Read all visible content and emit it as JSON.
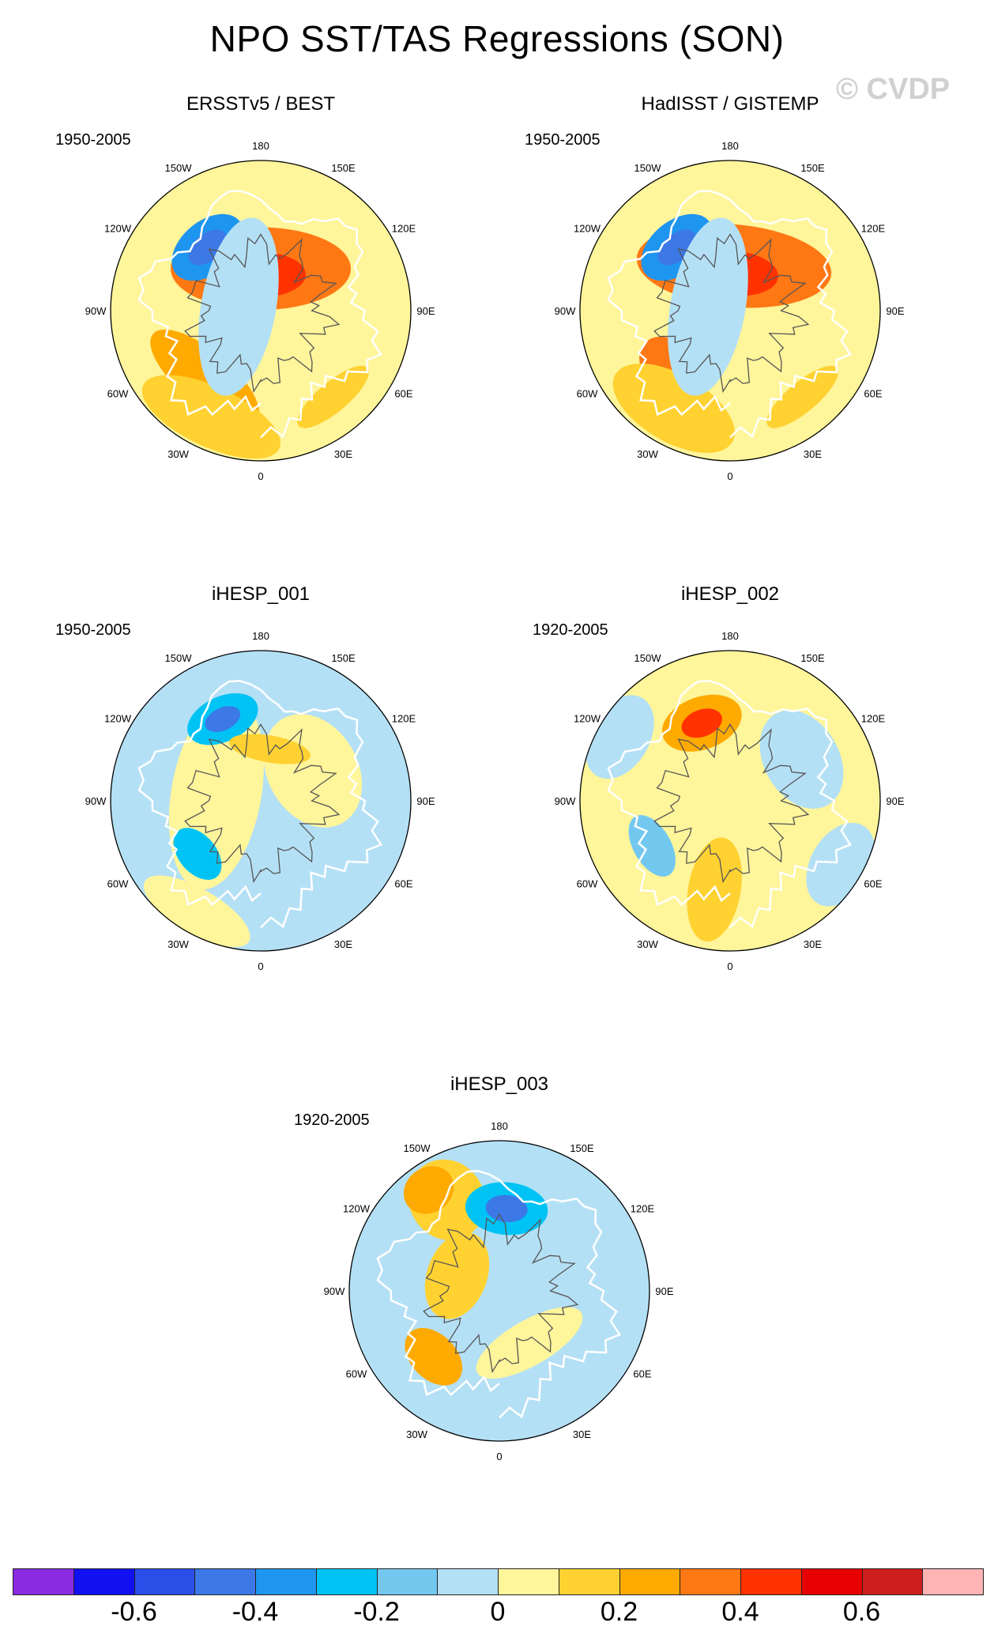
{
  "title": "NPO SST/TAS Regressions (SON)",
  "watermark": "© CVDP",
  "lon_labels": [
    "180",
    "150E",
    "120E",
    "90E",
    "60E",
    "30E",
    "0",
    "30W",
    "60W",
    "90W",
    "120W",
    "150W"
  ],
  "panels": [
    {
      "title": "ERSSTv5 / BEST",
      "years": "1950-2005",
      "blobs": [
        {
          "lon": 180,
          "r": 0.28,
          "level": 0.3,
          "rx": 1.2,
          "ry": 0.55
        },
        {
          "lon": 180,
          "r": 0.24,
          "level": 0.45,
          "rx": 0.6,
          "ry": 0.3
        },
        {
          "lon": -140,
          "r": 0.55,
          "level": -0.35,
          "rx": 0.55,
          "ry": 0.35
        },
        {
          "lon": -140,
          "r": 0.55,
          "level": -0.5,
          "rx": 0.3,
          "ry": 0.18
        },
        {
          "lon": -40,
          "r": 0.58,
          "level": 0.25,
          "rx": 0.9,
          "ry": 0.35
        },
        {
          "lon": -25,
          "r": 0.78,
          "level": 0.15,
          "rx": 1.0,
          "ry": 0.4
        },
        {
          "lon": -100,
          "r": 0.15,
          "level": -0.05,
          "rx": 1.2,
          "ry": 0.5
        },
        {
          "lon": 40,
          "r": 0.75,
          "level": 0.15,
          "rx": 0.6,
          "ry": 0.2
        }
      ]
    },
    {
      "title": "HadISST / GISTEMP",
      "years": "1950-2005",
      "blobs": [
        {
          "lon": 175,
          "r": 0.3,
          "level": 0.3,
          "rx": 1.3,
          "ry": 0.55
        },
        {
          "lon": 175,
          "r": 0.25,
          "level": 0.45,
          "rx": 0.6,
          "ry": 0.3
        },
        {
          "lon": -140,
          "r": 0.55,
          "level": -0.35,
          "rx": 0.55,
          "ry": 0.35
        },
        {
          "lon": -140,
          "r": 0.55,
          "level": -0.5,
          "rx": 0.3,
          "ry": 0.18
        },
        {
          "lon": -45,
          "r": 0.55,
          "level": 0.3,
          "rx": 0.5,
          "ry": 0.35
        },
        {
          "lon": -30,
          "r": 0.75,
          "level": 0.15,
          "rx": 0.9,
          "ry": 0.45
        },
        {
          "lon": -100,
          "r": 0.15,
          "level": -0.05,
          "rx": 1.2,
          "ry": 0.5
        },
        {
          "lon": 40,
          "r": 0.75,
          "level": 0.15,
          "rx": 0.6,
          "ry": 0.2
        }
      ]
    },
    {
      "title": "iHESP_001",
      "years": "1950-2005",
      "blobs": [
        {
          "lon": 0,
          "r": 0,
          "level": -0.05,
          "rx": 2.2,
          "ry": 2.2
        },
        {
          "lon": -100,
          "r": 0.3,
          "level": 0.05,
          "rx": 1.3,
          "ry": 0.6
        },
        {
          "lon": 120,
          "r": 0.4,
          "level": 0.05,
          "rx": 0.8,
          "ry": 0.6
        },
        {
          "lon": -155,
          "r": 0.6,
          "level": -0.3,
          "rx": 0.5,
          "ry": 0.3
        },
        {
          "lon": -155,
          "r": 0.6,
          "level": -0.45,
          "rx": 0.25,
          "ry": 0.15
        },
        {
          "lon": 170,
          "r": 0.35,
          "level": 0.15,
          "rx": 0.55,
          "ry": 0.18
        },
        {
          "lon": -50,
          "r": 0.55,
          "level": -0.3,
          "rx": 0.4,
          "ry": 0.25
        },
        {
          "lon": -30,
          "r": 0.85,
          "level": 0.05,
          "rx": 0.8,
          "ry": 0.3
        }
      ]
    },
    {
      "title": "iHESP_002",
      "years": "1920-2005",
      "blobs": [
        {
          "lon": 0,
          "r": 0,
          "level": 0.05,
          "rx": 2.2,
          "ry": 2.2
        },
        {
          "lon": 120,
          "r": 0.55,
          "level": -0.05,
          "rx": 0.7,
          "ry": 0.5
        },
        {
          "lon": 60,
          "r": 0.85,
          "level": -0.05,
          "rx": 0.6,
          "ry": 0.4
        },
        {
          "lon": -160,
          "r": 0.55,
          "level": 0.25,
          "rx": 0.55,
          "ry": 0.35
        },
        {
          "lon": -160,
          "r": 0.55,
          "level": 0.4,
          "rx": 0.28,
          "ry": 0.18
        },
        {
          "lon": -60,
          "r": 0.6,
          "level": -0.2,
          "rx": 0.45,
          "ry": 0.25
        },
        {
          "lon": -10,
          "r": 0.6,
          "level": 0.15,
          "rx": 0.35,
          "ry": 0.7
        },
        {
          "lon": -120,
          "r": 0.85,
          "level": -0.05,
          "rx": 0.6,
          "ry": 0.4
        }
      ]
    },
    {
      "title": "iHESP_003",
      "years": "1920-2005",
      "blobs": [
        {
          "lon": 0,
          "r": 0,
          "level": -0.05,
          "rx": 2.2,
          "ry": 2.2
        },
        {
          "lon": -150,
          "r": 0.7,
          "level": 0.15,
          "rx": 0.5,
          "ry": 0.55
        },
        {
          "lon": -145,
          "r": 0.82,
          "level": 0.25,
          "rx": 0.35,
          "ry": 0.3
        },
        {
          "lon": 175,
          "r": 0.55,
          "level": -0.3,
          "rx": 0.55,
          "ry": 0.35
        },
        {
          "lon": 175,
          "r": 0.55,
          "level": -0.45,
          "rx": 0.28,
          "ry": 0.18
        },
        {
          "lon": -45,
          "r": 0.62,
          "level": 0.2,
          "rx": 0.45,
          "ry": 0.3
        },
        {
          "lon": -110,
          "r": 0.3,
          "level": 0.1,
          "rx": 0.6,
          "ry": 0.4
        },
        {
          "lon": 30,
          "r": 0.4,
          "level": 0.05,
          "rx": 0.8,
          "ry": 0.3
        }
      ]
    }
  ],
  "colorbar": {
    "colors": [
      "#8a2be2",
      "#1010f0",
      "#2a4ee8",
      "#3c78e6",
      "#1e96f0",
      "#00c3f5",
      "#73c8f0",
      "#b4e0f5",
      "#fff59b",
      "#ffd232",
      "#ffaa00",
      "#ff7814",
      "#ff3200",
      "#e60000",
      "#cd1e1e",
      "#ffb4b4"
    ],
    "ticks": [
      {
        "value": "-0.6",
        "boundary": 2
      },
      {
        "value": "-0.4",
        "boundary": 4
      },
      {
        "value": "-0.2",
        "boundary": 6
      },
      {
        "value": "0",
        "boundary": 8
      },
      {
        "value": "0.2",
        "boundary": 10
      },
      {
        "value": "0.4",
        "boundary": 12
      },
      {
        "value": "0.6",
        "boundary": 14
      }
    ],
    "levels": [
      -0.7,
      -0.6,
      -0.5,
      -0.4,
      -0.3,
      -0.2,
      -0.1,
      0,
      0.1,
      0.2,
      0.3,
      0.4,
      0.5,
      0.6,
      0.7
    ]
  }
}
